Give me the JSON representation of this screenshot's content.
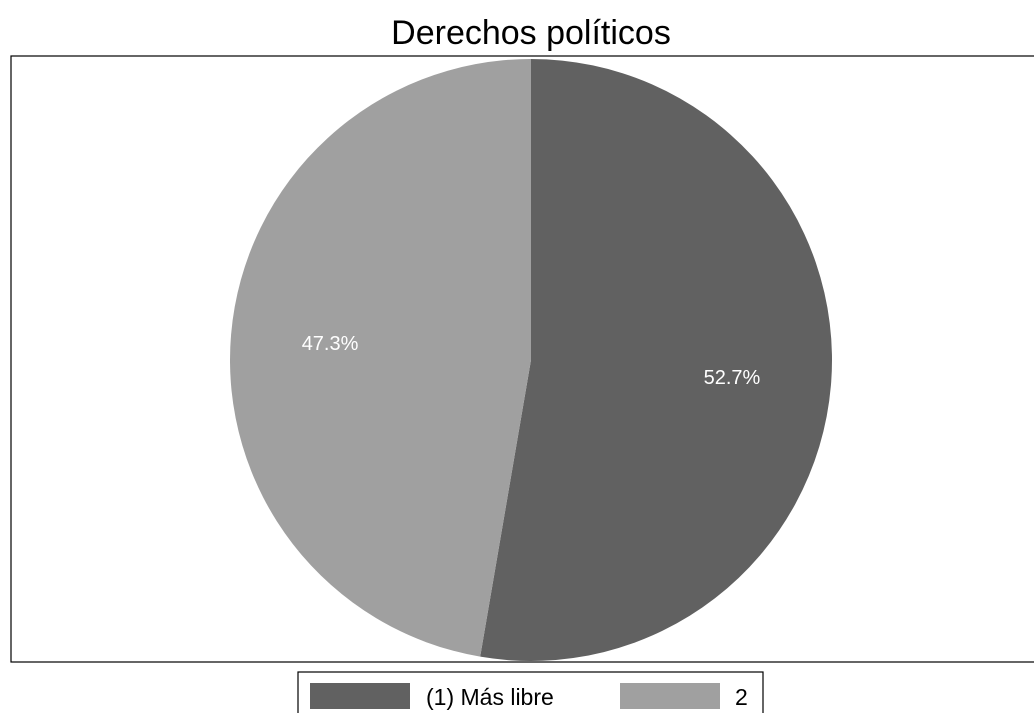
{
  "chart_data": {
    "type": "pie",
    "title": "Derechos políticos",
    "categories": [
      "(1) Más libre",
      "2"
    ],
    "values": [
      52.7,
      47.3
    ],
    "labels": [
      "52.7%",
      "47.3%"
    ],
    "colors": [
      "#616161",
      "#a0a0a0"
    ],
    "start_angle": "12 o'clock",
    "direction": "clockwise",
    "legend": {
      "placement": "bottom",
      "entries": [
        "(1) Más libre",
        "2"
      ]
    }
  }
}
